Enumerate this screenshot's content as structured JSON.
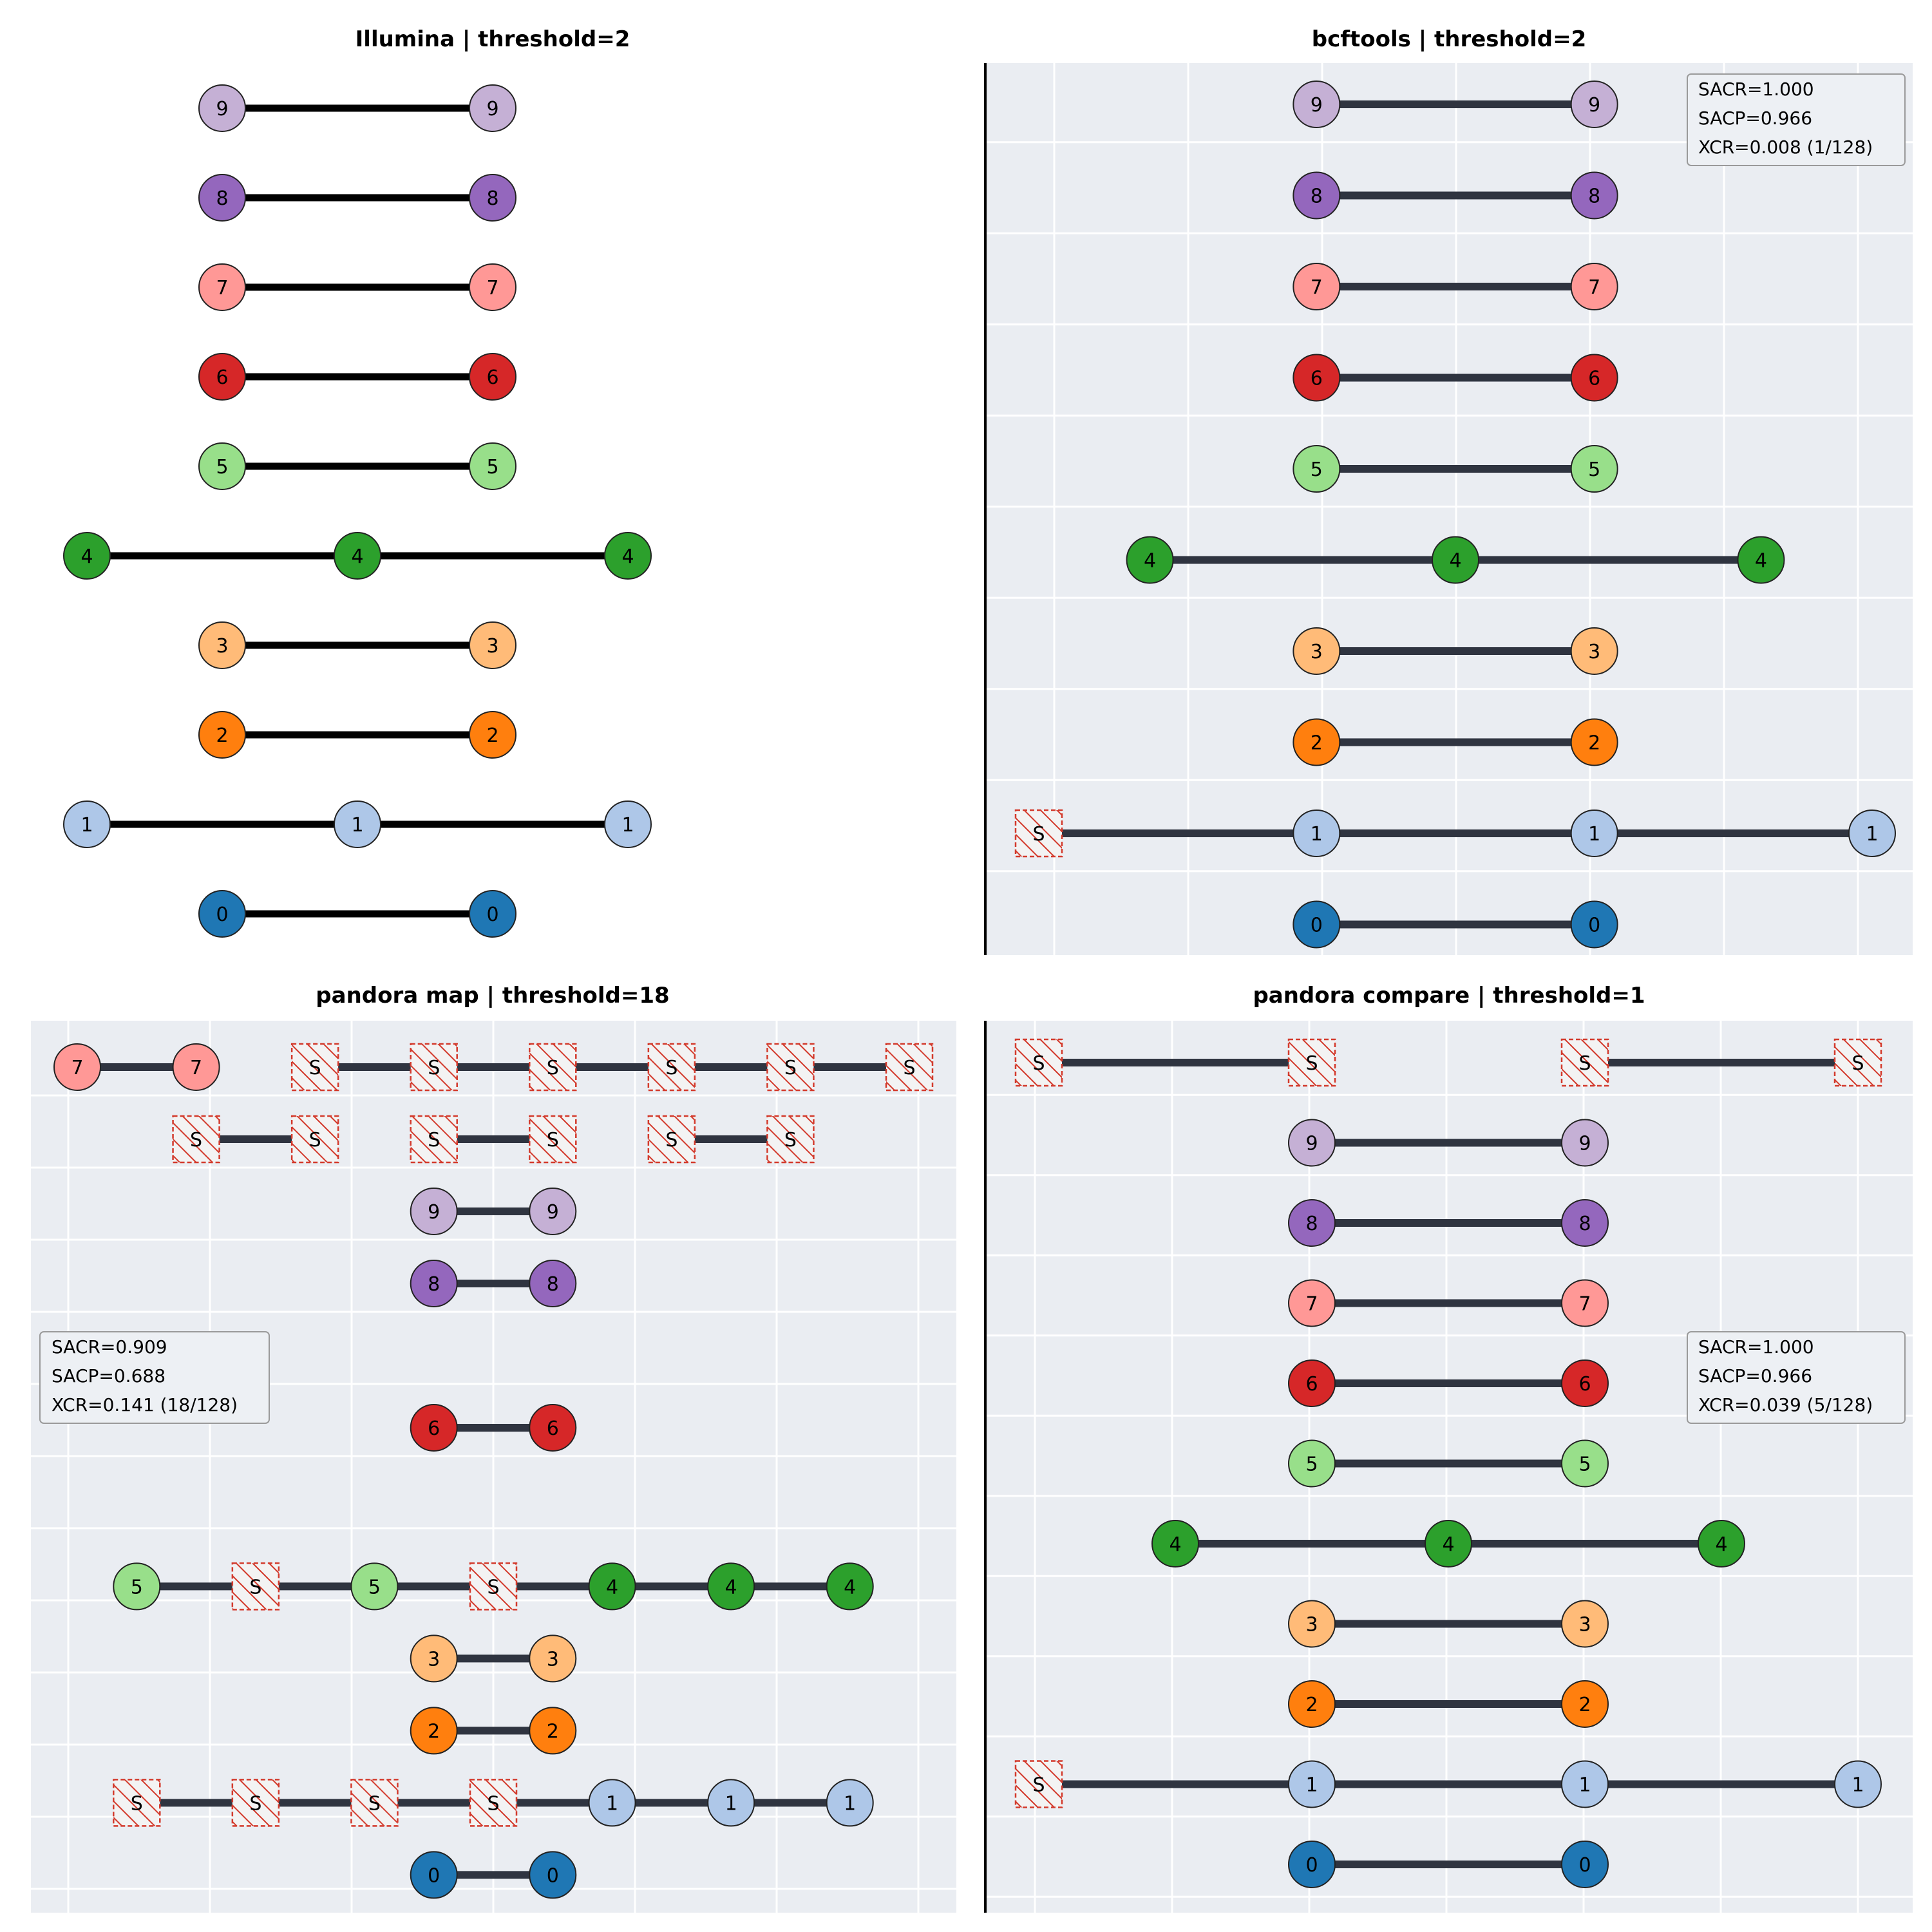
{
  "palette": {
    "0": "#1f77b4",
    "1": "#aec7e8",
    "2": "#ff7f0e",
    "3": "#ffbb78",
    "4": "#2ca02c",
    "5": "#98df8a",
    "6": "#d62728",
    "7": "#ff9896",
    "8": "#9467bd",
    "9": "#c5b0d5"
  },
  "null_label": "S",
  "colors": {
    "grid_bg": "#eaedf2",
    "edge_dark": "#2f3440",
    "edge_black": "#000000",
    "null_stroke": "#d33a2c"
  },
  "panels": [
    {
      "title": "Illumina | threshold=2",
      "style": "plain",
      "x_range": [
        0,
        3
      ],
      "rows": [
        {
          "nodes": [
            {
              "x": 0.5,
              "t": "9"
            },
            {
              "x": 1.5,
              "t": "9"
            }
          ]
        },
        {
          "nodes": [
            {
              "x": 0.5,
              "t": "8"
            },
            {
              "x": 1.5,
              "t": "8"
            }
          ]
        },
        {
          "nodes": [
            {
              "x": 0.5,
              "t": "7"
            },
            {
              "x": 1.5,
              "t": "7"
            }
          ]
        },
        {
          "nodes": [
            {
              "x": 0.5,
              "t": "6"
            },
            {
              "x": 1.5,
              "t": "6"
            }
          ]
        },
        {
          "nodes": [
            {
              "x": 0.5,
              "t": "5"
            },
            {
              "x": 1.5,
              "t": "5"
            }
          ]
        },
        {
          "nodes": [
            {
              "x": 0,
              "t": "4"
            },
            {
              "x": 1,
              "t": "4"
            },
            {
              "x": 2,
              "t": "4"
            }
          ]
        },
        {
          "nodes": [
            {
              "x": 0.5,
              "t": "3"
            },
            {
              "x": 1.5,
              "t": "3"
            }
          ]
        },
        {
          "nodes": [
            {
              "x": 0.5,
              "t": "2"
            },
            {
              "x": 1.5,
              "t": "2"
            }
          ]
        },
        {
          "nodes": [
            {
              "x": 0,
              "t": "1"
            },
            {
              "x": 1,
              "t": "1"
            },
            {
              "x": 2,
              "t": "1"
            }
          ]
        },
        {
          "nodes": [
            {
              "x": 0.5,
              "t": "0"
            },
            {
              "x": 1.5,
              "t": "0"
            }
          ]
        }
      ]
    },
    {
      "title": "bcftools | threshold=2",
      "style": "grid",
      "x_range": [
        0,
        3
      ],
      "metrics": [
        "SACR=1.000",
        "SACP=0.966",
        "XCR=0.008 (1/128)"
      ],
      "metrics_pos": "top-right",
      "rows": [
        {
          "nodes": [
            {
              "x": 1,
              "t": "9"
            },
            {
              "x": 2,
              "t": "9"
            }
          ]
        },
        {
          "nodes": [
            {
              "x": 1,
              "t": "8"
            },
            {
              "x": 2,
              "t": "8"
            }
          ]
        },
        {
          "nodes": [
            {
              "x": 1,
              "t": "7"
            },
            {
              "x": 2,
              "t": "7"
            }
          ]
        },
        {
          "nodes": [
            {
              "x": 1,
              "t": "6"
            },
            {
              "x": 2,
              "t": "6"
            }
          ]
        },
        {
          "nodes": [
            {
              "x": 1,
              "t": "5"
            },
            {
              "x": 2,
              "t": "5"
            }
          ]
        },
        {
          "nodes": [
            {
              "x": 0.4,
              "t": "4"
            },
            {
              "x": 1.5,
              "t": "4"
            },
            {
              "x": 2.6,
              "t": "4"
            }
          ]
        },
        {
          "nodes": [
            {
              "x": 1,
              "t": "3"
            },
            {
              "x": 2,
              "t": "3"
            }
          ]
        },
        {
          "nodes": [
            {
              "x": 1,
              "t": "2"
            },
            {
              "x": 2,
              "t": "2"
            }
          ]
        },
        {
          "nodes": [
            {
              "x": 0,
              "t": "S"
            },
            {
              "x": 1,
              "t": "1"
            },
            {
              "x": 2,
              "t": "1"
            },
            {
              "x": 3,
              "t": "1"
            }
          ]
        },
        {
          "nodes": [
            {
              "x": 1,
              "t": "0"
            },
            {
              "x": 2,
              "t": "0"
            }
          ]
        }
      ]
    },
    {
      "title": "pandora map | threshold=18",
      "style": "grid",
      "x_range": [
        0,
        7
      ],
      "metrics": [
        "SACR=0.909",
        "SACP=0.688",
        "XCR=0.141 (18/128)"
      ],
      "metrics_pos": "middle-left",
      "rows": [
        {
          "slot": 0,
          "nodes": [
            {
              "x": 0,
              "t": "7"
            },
            {
              "x": 1,
              "t": "7",
              "break_after": true
            },
            {
              "x": 2,
              "t": "S"
            },
            {
              "x": 3,
              "t": "S"
            },
            {
              "x": 4,
              "t": "S"
            },
            {
              "x": 5,
              "t": "S"
            },
            {
              "x": 6,
              "t": "S"
            },
            {
              "x": 7,
              "t": "S"
            }
          ]
        },
        {
          "slot": 1,
          "nodes": [
            {
              "x": 1,
              "t": "S"
            },
            {
              "x": 2,
              "t": "S",
              "break_after": true
            },
            {
              "x": 3,
              "t": "S"
            },
            {
              "x": 4,
              "t": "S",
              "break_after": true
            },
            {
              "x": 5,
              "t": "S"
            },
            {
              "x": 6,
              "t": "S"
            }
          ]
        },
        {
          "slot": 2,
          "nodes": [
            {
              "x": 3,
              "t": "9"
            },
            {
              "x": 4,
              "t": "9"
            }
          ]
        },
        {
          "slot": 3,
          "nodes": [
            {
              "x": 3,
              "t": "8"
            },
            {
              "x": 4,
              "t": "8"
            }
          ]
        },
        {
          "slot": 5,
          "nodes": [
            {
              "x": 3,
              "t": "6"
            },
            {
              "x": 4,
              "t": "6"
            }
          ]
        },
        {
          "slot": 7.2,
          "nodes": [
            {
              "x": 0.5,
              "t": "5"
            },
            {
              "x": 1.5,
              "t": "S"
            },
            {
              "x": 2.5,
              "t": "5"
            },
            {
              "x": 3.5,
              "t": "S"
            },
            {
              "x": 4.5,
              "t": "4"
            },
            {
              "x": 5.5,
              "t": "4"
            },
            {
              "x": 6.5,
              "t": "4"
            }
          ]
        },
        {
          "slot": 8.2,
          "nodes": [
            {
              "x": 3,
              "t": "3"
            },
            {
              "x": 4,
              "t": "3"
            }
          ]
        },
        {
          "slot": 9.2,
          "nodes": [
            {
              "x": 3,
              "t": "2"
            },
            {
              "x": 4,
              "t": "2"
            }
          ]
        },
        {
          "slot": 10.2,
          "nodes": [
            {
              "x": 0.5,
              "t": "S"
            },
            {
              "x": 1.5,
              "t": "S"
            },
            {
              "x": 2.5,
              "t": "S"
            },
            {
              "x": 3.5,
              "t": "S"
            },
            {
              "x": 4.5,
              "t": "1"
            },
            {
              "x": 5.5,
              "t": "1"
            },
            {
              "x": 6.5,
              "t": "1"
            }
          ]
        },
        {
          "slot": 11.2,
          "nodes": [
            {
              "x": 3,
              "t": "0"
            },
            {
              "x": 4,
              "t": "0"
            }
          ]
        }
      ]
    },
    {
      "title": "pandora compare | threshold=1",
      "style": "grid",
      "x_range": [
        0,
        3
      ],
      "metrics": [
        "SACR=1.000",
        "SACP=0.966",
        "XCR=0.039 (5/128)"
      ],
      "metrics_pos": "middle-right",
      "rows": [
        {
          "nodes": [
            {
              "x": 0,
              "t": "S"
            },
            {
              "x": 1,
              "t": "S",
              "break_after": true
            },
            {
              "x": 2,
              "t": "S"
            },
            {
              "x": 3,
              "t": "S"
            }
          ]
        },
        {
          "nodes": [
            {
              "x": 1,
              "t": "9"
            },
            {
              "x": 2,
              "t": "9"
            }
          ]
        },
        {
          "nodes": [
            {
              "x": 1,
              "t": "8"
            },
            {
              "x": 2,
              "t": "8"
            }
          ]
        },
        {
          "nodes": [
            {
              "x": 1,
              "t": "7"
            },
            {
              "x": 2,
              "t": "7"
            }
          ]
        },
        {
          "nodes": [
            {
              "x": 1,
              "t": "6"
            },
            {
              "x": 2,
              "t": "6"
            }
          ]
        },
        {
          "nodes": [
            {
              "x": 1,
              "t": "5"
            },
            {
              "x": 2,
              "t": "5"
            }
          ]
        },
        {
          "nodes": [
            {
              "x": 0.5,
              "t": "4"
            },
            {
              "x": 1.5,
              "t": "4"
            },
            {
              "x": 2.5,
              "t": "4"
            }
          ]
        },
        {
          "nodes": [
            {
              "x": 1,
              "t": "3"
            },
            {
              "x": 2,
              "t": "3"
            }
          ]
        },
        {
          "nodes": [
            {
              "x": 1,
              "t": "2"
            },
            {
              "x": 2,
              "t": "2"
            }
          ]
        },
        {
          "nodes": [
            {
              "x": 0,
              "t": "S"
            },
            {
              "x": 1,
              "t": "1"
            },
            {
              "x": 2,
              "t": "1"
            },
            {
              "x": 3,
              "t": "1"
            }
          ]
        },
        {
          "nodes": [
            {
              "x": 1,
              "t": "0"
            },
            {
              "x": 2,
              "t": "0"
            }
          ]
        }
      ]
    }
  ]
}
